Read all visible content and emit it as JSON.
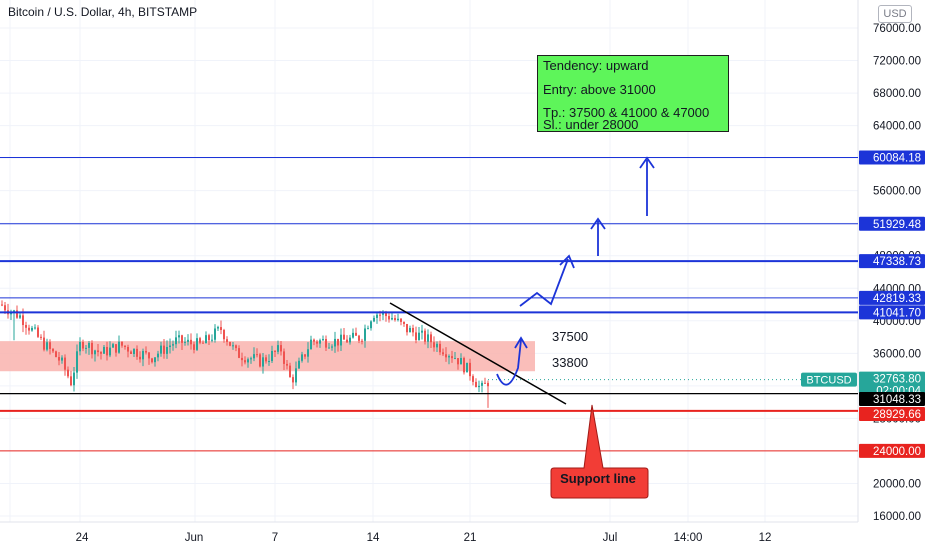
{
  "header": {
    "title": "Bitcoin / U.S. Dollar, 4h, BITSTAMP",
    "currency_button": "USD"
  },
  "colors": {
    "blue": "#1c34d8",
    "red": "#e8231f",
    "green_box": "#5ef55a",
    "teal": "#26a69a",
    "candle_red": "#ef5350",
    "zone": "#f9b3ae"
  },
  "chart_data": {
    "type": "candlestick",
    "symbol": "BTCUSD",
    "timeframe": "4h",
    "ylim": [
      14000,
      78000
    ],
    "y_ticks": [
      16000,
      20000,
      24000,
      28000,
      32000,
      36000,
      40000,
      44000,
      48000,
      52000,
      56000,
      60000,
      64000,
      68000,
      72000,
      76000
    ],
    "x_ticks": [
      "24",
      "Jun",
      "7",
      "14",
      "21",
      "Jul",
      "14:00",
      "12"
    ],
    "price_labels": [
      {
        "text": "60084.18",
        "color": "blue"
      },
      {
        "text": "51929.48",
        "color": "blue"
      },
      {
        "text": "47338.73",
        "color": "blue"
      },
      {
        "text": "42819.33",
        "color": "blue"
      },
      {
        "text": "41041.70",
        "color": "blue"
      },
      {
        "text": "32763.80",
        "color": "teal"
      },
      {
        "text": "02:00:04",
        "color": "teal"
      },
      {
        "text": "31048.33",
        "color": "black"
      },
      {
        "text": "28929.66",
        "color": "red"
      },
      {
        "text": "24000.00",
        "color": "red"
      }
    ],
    "symbol_label": "BTCUSD",
    "horizontal_lines": [
      {
        "value": 60084.18,
        "color": "blue"
      },
      {
        "value": 51929.48,
        "color": "blue"
      },
      {
        "value": 47338.73,
        "color": "blue"
      },
      {
        "value": 42819.33,
        "color": "blue"
      },
      {
        "value": 41041.7,
        "color": "blue"
      },
      {
        "value": 31048.33,
        "color": "black"
      },
      {
        "value": 28929.66,
        "color": "red"
      },
      {
        "value": 24000.0,
        "color": "red"
      }
    ],
    "current_price": 32763.8,
    "zone": {
      "from": 33800,
      "to": 37500
    },
    "zone_labels": [
      "37500",
      "33800"
    ],
    "note": {
      "lines": [
        "Tendency: upward",
        "Entry: above 31000",
        "Tp.: 37500 & 41000 & 47000",
        "Sl.: under 28000"
      ]
    },
    "callout": "Support line"
  }
}
